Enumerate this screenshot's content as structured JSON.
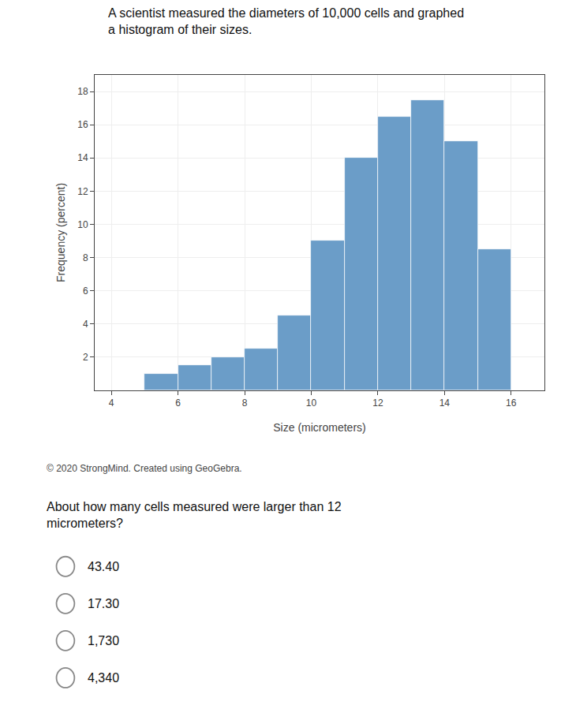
{
  "chart_data": {
    "type": "histogram",
    "title": "A scientist measured the diameters of 10,000 cells and graphed\na histogram of their sizes.",
    "x_label": "Size (micrometers)",
    "y_label": "Frequency (percent)",
    "bins": [
      5,
      6,
      7,
      8,
      9,
      10,
      11,
      12,
      13,
      14,
      15,
      16
    ],
    "values": [
      1.0,
      1.5,
      2.0,
      2.5,
      4.5,
      9.0,
      14.0,
      16.5,
      17.5,
      15.0,
      8.5
    ],
    "color": "#6b9dc8",
    "xlim": [
      3.5,
      17
    ],
    "xticks": [
      4,
      6,
      8,
      10,
      12,
      14,
      16
    ],
    "ylim": [
      0,
      19
    ],
    "yticks": [
      2,
      4,
      6,
      8,
      10,
      12,
      14,
      16,
      18
    ],
    "grid": true,
    "annotations": [
      "© 2020 StrongMind. Created using GeoGebra.",
      "About how many cells measured were larger than 12\nmicrometers?",
      "43.40",
      "17.30",
      "1,730",
      "4,340"
    ]
  }
}
